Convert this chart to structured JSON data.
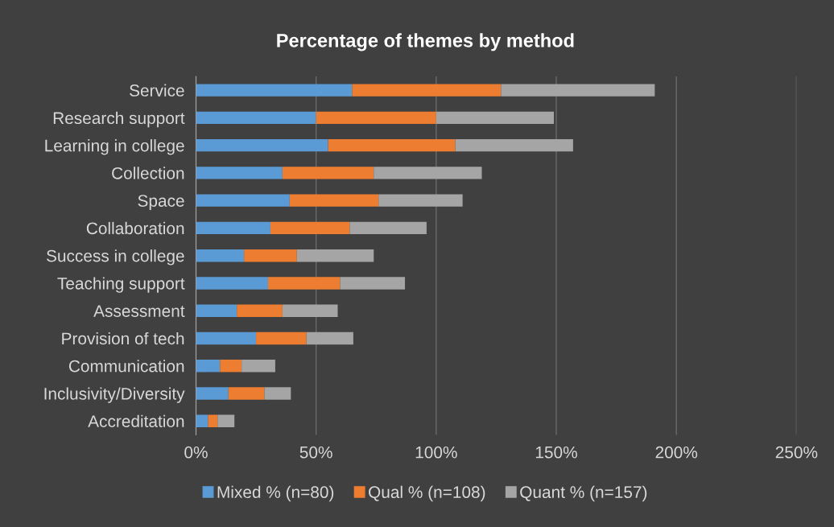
{
  "chart_data": {
    "type": "bar",
    "title": "Percentage of themes by method",
    "orientation": "horizontal",
    "stacked": true,
    "categories": [
      "Service",
      "Research support",
      "Learning in college",
      "Collection",
      "Space",
      "Collaboration",
      "Success in college",
      "Teaching support",
      "Assessment",
      "Provision of tech",
      "Communication",
      "Inclusivity/Diversity",
      "Accreditation"
    ],
    "series": [
      {
        "name": "Mixed % (n=80)",
        "color": "#5b9bd5",
        "values": [
          65,
          50,
          55,
          36,
          39,
          31,
          20,
          30,
          17,
          25,
          10,
          13.5,
          5
        ]
      },
      {
        "name": "Qual % (n=108)",
        "color": "#ed7d31",
        "values": [
          62,
          50,
          53,
          38,
          37,
          33,
          22,
          30,
          19,
          21,
          9,
          15,
          4
        ]
      },
      {
        "name": "Quant % (n=157)",
        "color": "#a5a5a5",
        "values": [
          64,
          49,
          49,
          45,
          35,
          32,
          32,
          27,
          23,
          19.5,
          14,
          11,
          7
        ]
      }
    ],
    "xlim": [
      0,
      250
    ],
    "xticks": [
      {
        "value": 0,
        "label": "0%"
      },
      {
        "value": 50,
        "label": "50%"
      },
      {
        "value": 100,
        "label": "100%"
      },
      {
        "value": 150,
        "label": "150%"
      },
      {
        "value": 200,
        "label": "200%"
      },
      {
        "value": 250,
        "label": "250%"
      }
    ],
    "grid": "x",
    "legend": "bottom"
  }
}
